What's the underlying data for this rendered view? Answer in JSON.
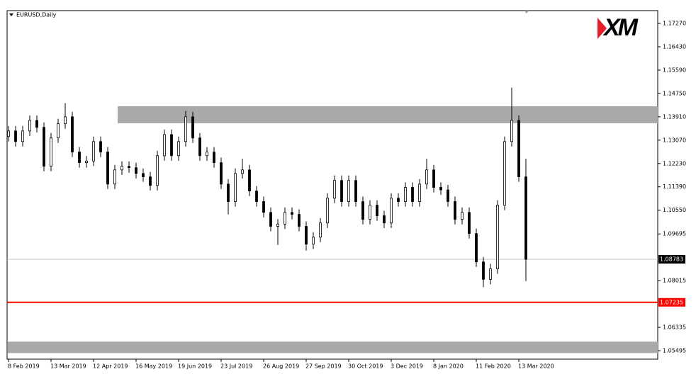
{
  "chart_data": {
    "type": "candlestick",
    "title": "EURUSD,Daily",
    "logo": "XM",
    "categories": [
      "8 Feb 2019",
      null,
      null,
      null,
      null,
      null,
      "13 Mar 2019",
      null,
      null,
      null,
      null,
      null,
      "12 Apr 2019",
      null,
      null,
      null,
      null,
      null,
      "16 May 2019",
      null,
      null,
      null,
      null,
      null,
      "19 Jun 2019",
      null,
      null,
      null,
      null,
      null,
      "23 Jul 2019",
      null,
      null,
      null,
      null,
      null,
      "26 Aug 2019",
      null,
      null,
      null,
      null,
      null,
      "27 Sep 2019",
      null,
      null,
      null,
      null,
      null,
      "30 Oct 2019",
      null,
      null,
      null,
      null,
      null,
      "3 Dec 2019",
      null,
      null,
      null,
      null,
      null,
      "8 Jan 2020",
      null,
      null,
      null,
      null,
      null,
      "11 Feb 2020",
      null,
      null,
      null,
      null,
      null,
      "13 Mar 2020",
      null
    ],
    "open": [
      1.132,
      1.134,
      1.1302,
      1.134,
      1.1378,
      1.1353,
      1.1213,
      1.1315,
      1.1366,
      1.1391,
      1.1264,
      1.1226,
      1.1232,
      1.1302,
      1.1264,
      1.1149,
      1.12,
      1.1213,
      1.1208,
      1.1187,
      1.1175,
      1.1144,
      1.1251,
      1.1327,
      1.1251,
      1.1302,
      1.1391,
      1.1315,
      1.1251,
      1.1264,
      1.1226,
      1.1149,
      1.1086,
      1.1187,
      1.12,
      1.1124,
      1.1086,
      1.1047,
      1.0997,
      1.1005,
      1.1047,
      1.104,
      1.0997,
      1.0933,
      1.0958,
      1.1009,
      1.1098,
      1.1162,
      1.1086,
      1.1162,
      1.1086,
      1.1022,
      1.1073,
      1.1035,
      1.1009,
      1.1098,
      1.1086,
      1.1137,
      1.1086,
      1.1149,
      1.12,
      1.1137,
      1.1128,
      1.1086,
      1.1022,
      1.1047,
      1.0971,
      1.0869,
      1.0806,
      1.0844,
      1.1073,
      1.1302,
      1.1378,
      1.1175
    ],
    "high": [
      1.1358,
      1.1358,
      1.1358,
      1.1396,
      1.1396,
      1.1371,
      1.1333,
      1.1384,
      1.144,
      1.1409,
      1.1282,
      1.125,
      1.132,
      1.132,
      1.1282,
      1.1218,
      1.1231,
      1.1231,
      1.1226,
      1.1205,
      1.1193,
      1.1269,
      1.1345,
      1.1345,
      1.132,
      1.1412,
      1.1409,
      1.1333,
      1.1282,
      1.1282,
      1.1244,
      1.1167,
      1.1205,
      1.124,
      1.1218,
      1.1142,
      1.1104,
      1.1065,
      1.1023,
      1.1065,
      1.1065,
      1.1058,
      1.1015,
      1.0976,
      1.1027,
      1.1116,
      1.118,
      1.118,
      1.118,
      1.118,
      1.1104,
      1.1091,
      1.1091,
      1.1053,
      1.1116,
      1.1116,
      1.1155,
      1.1155,
      1.1167,
      1.124,
      1.1218,
      1.1155,
      1.1146,
      1.1104,
      1.1065,
      1.1065,
      1.0989,
      1.0887,
      1.0862,
      1.1091,
      1.132,
      1.1496,
      1.1396,
      1.124
    ],
    "low": [
      1.1302,
      1.1284,
      1.1284,
      1.1322,
      1.1335,
      1.1195,
      1.1195,
      1.1297,
      1.1348,
      1.1246,
      1.1208,
      1.1208,
      1.1214,
      1.1246,
      1.1131,
      1.1131,
      1.1182,
      1.119,
      1.1169,
      1.1157,
      1.1126,
      1.1126,
      1.1233,
      1.1233,
      1.1233,
      1.1284,
      1.1297,
      1.1233,
      1.1233,
      1.1208,
      1.1131,
      1.104,
      1.1068,
      1.1169,
      1.1106,
      1.1068,
      1.1029,
      1.0979,
      1.093,
      1.0987,
      1.1022,
      1.0979,
      1.091,
      1.0915,
      1.094,
      1.0991,
      1.108,
      1.1068,
      1.1068,
      1.1068,
      1.1004,
      1.1004,
      1.1017,
      1.0991,
      1.0991,
      1.1068,
      1.1068,
      1.1068,
      1.1068,
      1.1131,
      1.1119,
      1.111,
      1.1068,
      1.1004,
      1.1004,
      1.0953,
      1.0851,
      1.0778,
      1.0788,
      1.0826,
      1.1055,
      1.1284,
      1.1157,
      1.08
    ],
    "close": [
      1.134,
      1.1302,
      1.134,
      1.1378,
      1.1353,
      1.1213,
      1.1315,
      1.1366,
      1.1391,
      1.1264,
      1.1226,
      1.1232,
      1.1302,
      1.1264,
      1.1149,
      1.12,
      1.1213,
      1.1208,
      1.1187,
      1.1175,
      1.1144,
      1.1251,
      1.1327,
      1.1251,
      1.1302,
      1.1391,
      1.1315,
      1.1251,
      1.1264,
      1.1226,
      1.1149,
      1.1086,
      1.1187,
      1.12,
      1.1124,
      1.1086,
      1.1047,
      1.0997,
      1.1005,
      1.1047,
      1.104,
      1.0997,
      1.0933,
      1.0958,
      1.1009,
      1.1098,
      1.1162,
      1.1086,
      1.1162,
      1.1086,
      1.1022,
      1.1073,
      1.1035,
      1.1009,
      1.1098,
      1.1086,
      1.1137,
      1.1086,
      1.1149,
      1.12,
      1.1137,
      1.1128,
      1.1086,
      1.1022,
      1.1047,
      1.0971,
      1.0869,
      1.0806,
      1.0844,
      1.1073,
      1.1302,
      1.1378,
      1.1175,
      1.08783
    ],
    "ylim": [
      1.0519,
      1.1773
    ],
    "yticks": [
      {
        "value": 1.1727,
        "label": "1.17270"
      },
      {
        "value": 1.1643,
        "label": "1.16430"
      },
      {
        "value": 1.1559,
        "label": "1.15590"
      },
      {
        "value": 1.1475,
        "label": "1.14750"
      },
      {
        "value": 1.1391,
        "label": "1.13910"
      },
      {
        "value": 1.1307,
        "label": "1.13070"
      },
      {
        "value": 1.1223,
        "label": "1.12230"
      },
      {
        "value": 1.1139,
        "label": "1.11390"
      },
      {
        "value": 1.1055,
        "label": "1.10550"
      },
      1.09695,
      1.08015,
      1.06335,
      1.05495
    ],
    "zones": [
      {
        "from": 1.1368,
        "to": 1.1429,
        "color": "#a9a9a9"
      },
      {
        "from": 1.0541,
        "to": 1.0582,
        "color": "#a9a9a9"
      }
    ],
    "levels": [
      {
        "value": 1.07235,
        "color": "#ff0000"
      }
    ],
    "current_price": 1.08783
  }
}
